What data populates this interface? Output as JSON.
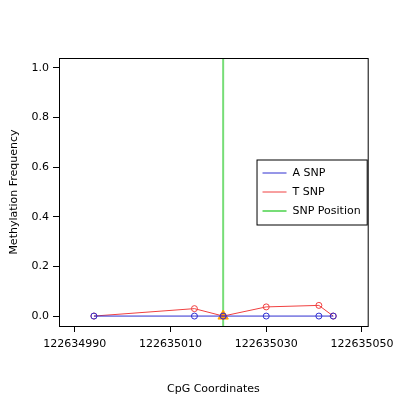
{
  "chart_data": {
    "type": "line",
    "x_label": "CpG Coordinates",
    "y_label": "Methylation Frequency",
    "xlim": [
      122634986.7,
      122635051.2
    ],
    "xticks": [
      122634990,
      122635010,
      122635030,
      122635050
    ],
    "ylim": [
      -0.04,
      1.04
    ],
    "yticks": [
      {
        "value": 0,
        "label": "0.0"
      },
      {
        "value": 0.2,
        "label": "0.2"
      },
      {
        "value": 0.4,
        "label": "0.4"
      },
      {
        "value": 0.6,
        "label": "0.6"
      },
      {
        "value": 0.8,
        "label": "0.8"
      },
      {
        "value": 1,
        "label": "1.0"
      }
    ],
    "grid": false,
    "legend": "right",
    "series": [
      {
        "name": "A SNP",
        "color": "#2f2fd0",
        "marker": "circle",
        "x": [
          122634994,
          122635015,
          122635021,
          122635030,
          122635041,
          122635044
        ],
        "values": [
          0,
          0,
          0,
          0,
          0,
          0
        ]
      },
      {
        "name": "T SNP",
        "color": "#f04040",
        "marker": "circle",
        "x": [
          122634994,
          122635015,
          122635021,
          122635030,
          122635041,
          122635044
        ],
        "values": [
          0,
          0.03,
          0,
          0.037,
          0.043,
          0
        ]
      },
      {
        "name": "SNP Position",
        "color": "#77dd77",
        "marker": "triangle",
        "line_style": "vertical",
        "x": [
          122635021
        ],
        "values": [
          0
        ]
      }
    ]
  }
}
